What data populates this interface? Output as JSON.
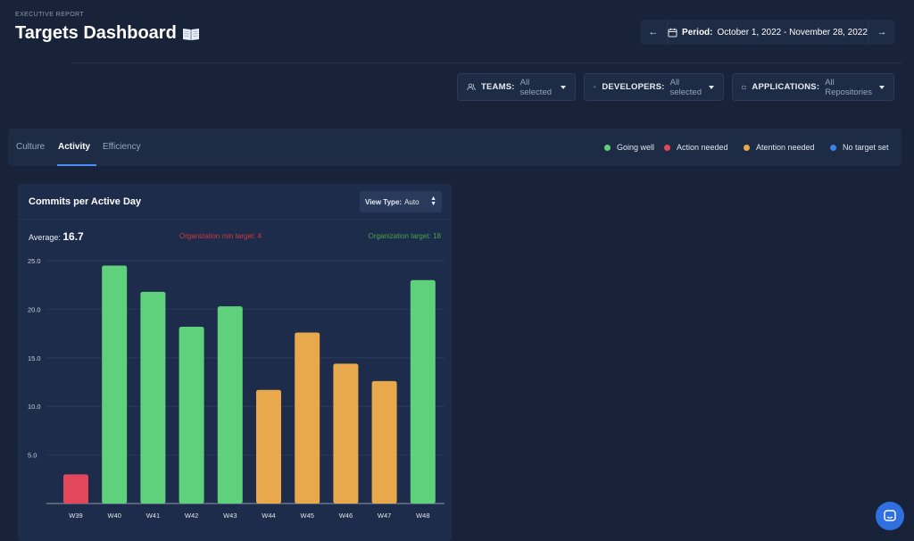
{
  "header": {
    "eyebrow": "EXECUTIVE REPORT",
    "title": "Targets Dashboard"
  },
  "period": {
    "label": "Period:",
    "value": "October 1, 2022 - November 28, 2022"
  },
  "filters": [
    {
      "label": "TEAMS:",
      "value": "All selected",
      "icon": "users-icon"
    },
    {
      "label": "DEVELOPERS:",
      "value": "All selected",
      "icon": "user-check-icon"
    },
    {
      "label": "APPLICATIONS:",
      "value": "All Repositories",
      "icon": "folder-icon"
    }
  ],
  "tabs": [
    "Culture",
    "Activity",
    "Efficiency"
  ],
  "active_tab": "Activity",
  "legend": [
    {
      "label": "Going well",
      "color": "#5fd17d"
    },
    {
      "label": "Action needed",
      "color": "#e2485a"
    },
    {
      "label": "Atention needed",
      "color": "#e8a94c"
    },
    {
      "label": "No target set",
      "color": "#3f7fe8"
    }
  ],
  "card": {
    "title": "Commits per Active Day",
    "view_type_label": "View Type:",
    "view_type_value": "Auto",
    "average_label": "Average:",
    "average_value": "16.7",
    "min_target_text": "Organization min target: 4",
    "org_target_text": "Organization target: 18"
  },
  "chart_data": {
    "type": "bar",
    "categories": [
      "W39",
      "W40",
      "W41",
      "W42",
      "W43",
      "W44",
      "W45",
      "W46",
      "W47",
      "W48"
    ],
    "values": [
      3.0,
      24.5,
      21.8,
      18.2,
      20.3,
      11.7,
      17.6,
      14.4,
      12.6,
      23.0
    ],
    "colors": [
      "#e2485a",
      "#5fd17d",
      "#5fd17d",
      "#5fd17d",
      "#5fd17d",
      "#e8a94c",
      "#e8a94c",
      "#e8a94c",
      "#e8a94c",
      "#5fd17d"
    ],
    "yticks": [
      "25.0",
      "20.0",
      "15.0",
      "10.0",
      "5.0"
    ],
    "ylim": [
      0,
      25
    ],
    "grid": true
  }
}
